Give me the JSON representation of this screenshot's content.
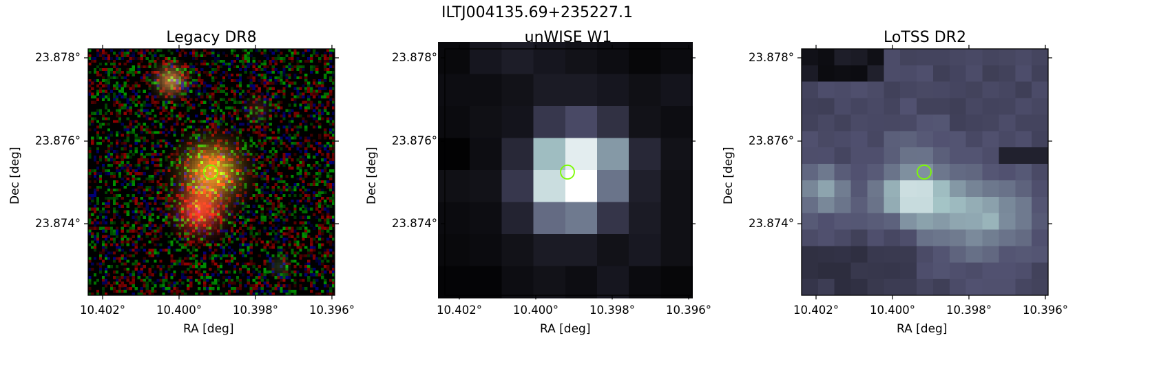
{
  "figure": {
    "title": "ILTJ004135.69+235227.1"
  },
  "marker": {
    "color": "#7CFC00"
  },
  "shared_axes": {
    "x_label": "RA [deg]",
    "y_label": "Dec [deg]",
    "x_ticks": [
      "10.402°",
      "10.400°",
      "10.398°",
      "10.396°"
    ],
    "y_ticks": [
      "23.878°",
      "23.876°",
      "23.874°"
    ]
  },
  "panels": [
    {
      "title": "Legacy DR8",
      "colormap": "rgb"
    },
    {
      "title": "unWISE W1",
      "colormap": "bone"
    },
    {
      "title": "LoTSS DR2",
      "colormap": "bone"
    }
  ]
}
